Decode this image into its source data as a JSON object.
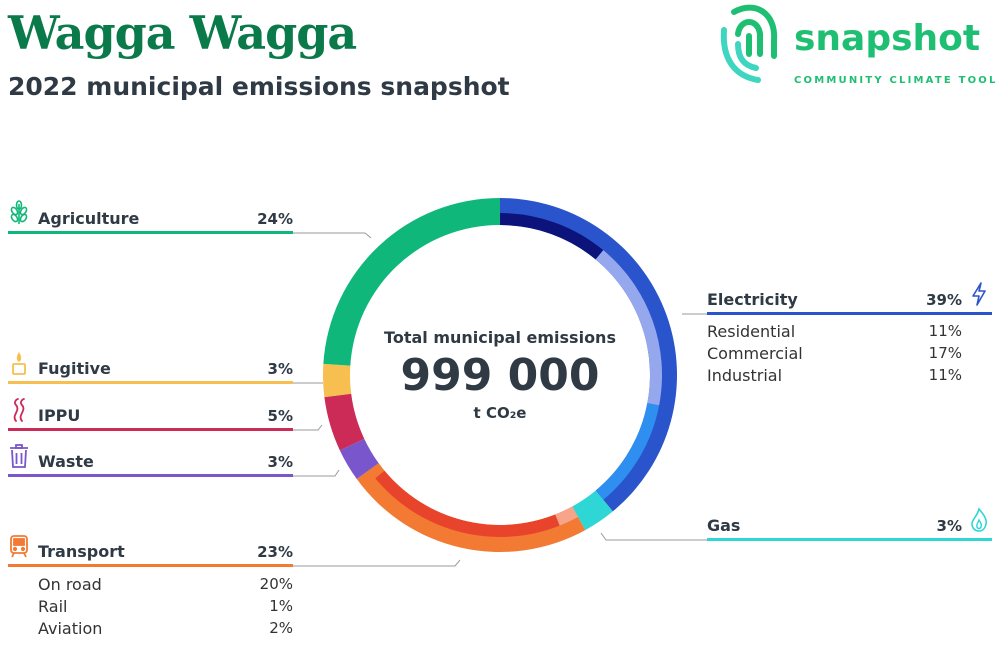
{
  "header": {
    "title": "Wagga Wagga",
    "subtitle": "2022 municipal emissions snapshot"
  },
  "logo": {
    "word": "snapshot",
    "tagline": "COMMUNITY CLIMATE TOOL",
    "color": "#1fbf73"
  },
  "center": {
    "label": "Total municipal emissions",
    "value": "999 000",
    "unit": "t CO₂e"
  },
  "categories": {
    "agriculture": {
      "name": "Agriculture",
      "pct": "24%",
      "color": "#0fb87a",
      "icon": "wheat-icon"
    },
    "fugitive": {
      "name": "Fugitive",
      "pct": "3%",
      "color": "#f7bf50",
      "icon": "flame-candle-icon"
    },
    "ippu": {
      "name": "IPPU",
      "pct": "5%",
      "color": "#cc2b58",
      "icon": "smoke-icon"
    },
    "waste": {
      "name": "Waste",
      "pct": "3%",
      "color": "#7a56cc",
      "icon": "trash-icon"
    },
    "transport": {
      "name": "Transport",
      "pct": "23%",
      "color": "#f27a32",
      "icon": "train-icon",
      "subs": [
        {
          "label": "On road",
          "pct": "20%"
        },
        {
          "label": "Rail",
          "pct": "1%"
        },
        {
          "label": "Aviation",
          "pct": "2%"
        }
      ]
    },
    "electricity": {
      "name": "Electricity",
      "pct": "39%",
      "color": "#2a54cc",
      "icon": "lightning-icon",
      "subs": [
        {
          "label": "Residential",
          "pct": "11%"
        },
        {
          "label": "Commercial",
          "pct": "17%"
        },
        {
          "label": "Industrial",
          "pct": "11%"
        }
      ]
    },
    "gas": {
      "name": "Gas",
      "pct": "3%",
      "color": "#2fd6d6",
      "icon": "gas-flame-icon"
    }
  },
  "chart_data": {
    "type": "pie",
    "variant": "donut",
    "title": "",
    "unit": "%",
    "order": "clockwise from top",
    "slices": [
      {
        "name": "Electricity",
        "value": 39,
        "color": "#2a54cc",
        "subs": [
          {
            "name": "Residential",
            "value": 11,
            "color": "#0c137a"
          },
          {
            "name": "Commercial",
            "value": 17,
            "color": "#95a8ee"
          },
          {
            "name": "Industrial",
            "value": 11,
            "color": "#2e8ff0"
          }
        ]
      },
      {
        "name": "Gas",
        "value": 3,
        "color": "#2fd6d6"
      },
      {
        "name": "Transport",
        "value": 23,
        "color": "#f27a32",
        "subs": [
          {
            "name": "Aviation",
            "value": 2,
            "color": "#f6a58a"
          },
          {
            "name": "On road",
            "value": 20,
            "color": "#e8442c"
          },
          {
            "name": "Rail",
            "value": 1,
            "color": "#f27a32"
          }
        ]
      },
      {
        "name": "Waste",
        "value": 3,
        "color": "#7a56cc"
      },
      {
        "name": "IPPU",
        "value": 5,
        "color": "#cc2b58"
      },
      {
        "name": "Fugitive",
        "value": 3,
        "color": "#f7bf50"
      },
      {
        "name": "Agriculture",
        "value": 24,
        "color": "#0fb87a"
      }
    ]
  }
}
